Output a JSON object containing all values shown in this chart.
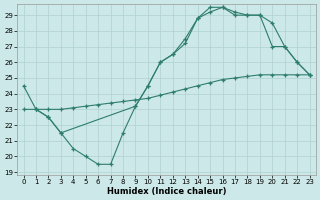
{
  "title": "",
  "xlabel": "Humidex (Indice chaleur)",
  "ylabel": "",
  "bg_color": "#cce8e8",
  "line_color": "#2e7d6e",
  "grid_color": "#b0d0d0",
  "xlim": [
    -0.5,
    23.5
  ],
  "ylim": [
    18.8,
    29.7
  ],
  "yticks": [
    19,
    20,
    21,
    22,
    23,
    24,
    25,
    26,
    27,
    28,
    29
  ],
  "xticks": [
    0,
    1,
    2,
    3,
    4,
    5,
    6,
    7,
    8,
    9,
    10,
    11,
    12,
    13,
    14,
    15,
    16,
    17,
    18,
    19,
    20,
    21,
    22,
    23
  ],
  "line1_x": [
    0,
    1,
    2,
    3,
    4,
    5,
    6,
    7,
    8,
    9,
    10,
    11,
    12,
    13,
    14,
    15,
    16,
    17,
    18,
    19,
    20,
    21,
    22,
    23
  ],
  "line1_y": [
    24.5,
    23.0,
    22.5,
    21.5,
    20.5,
    20.0,
    19.5,
    19.5,
    21.5,
    23.2,
    24.5,
    26.0,
    26.5,
    27.2,
    28.8,
    29.5,
    29.5,
    29.0,
    29.0,
    29.0,
    27.0,
    27.0,
    26.0,
    25.2
  ],
  "line2_x": [
    1,
    2,
    3,
    9,
    10,
    11,
    12,
    13,
    14,
    15,
    16,
    17,
    18,
    19,
    20,
    21,
    22,
    23
  ],
  "line2_y": [
    23.0,
    22.5,
    21.5,
    23.2,
    24.5,
    26.0,
    26.5,
    27.5,
    28.8,
    29.2,
    29.5,
    29.2,
    29.0,
    29.0,
    28.5,
    27.0,
    26.0,
    25.2
  ],
  "line3_x": [
    0,
    1,
    2,
    3,
    4,
    5,
    6,
    7,
    8,
    9,
    10,
    11,
    12,
    13,
    14,
    15,
    16,
    17,
    18,
    19,
    20,
    21,
    22,
    23
  ],
  "line3_y": [
    23.0,
    23.0,
    23.0,
    23.0,
    23.1,
    23.2,
    23.3,
    23.4,
    23.5,
    23.6,
    23.7,
    23.9,
    24.1,
    24.3,
    24.5,
    24.7,
    24.9,
    25.0,
    25.1,
    25.2,
    25.2,
    25.2,
    25.2,
    25.2
  ]
}
